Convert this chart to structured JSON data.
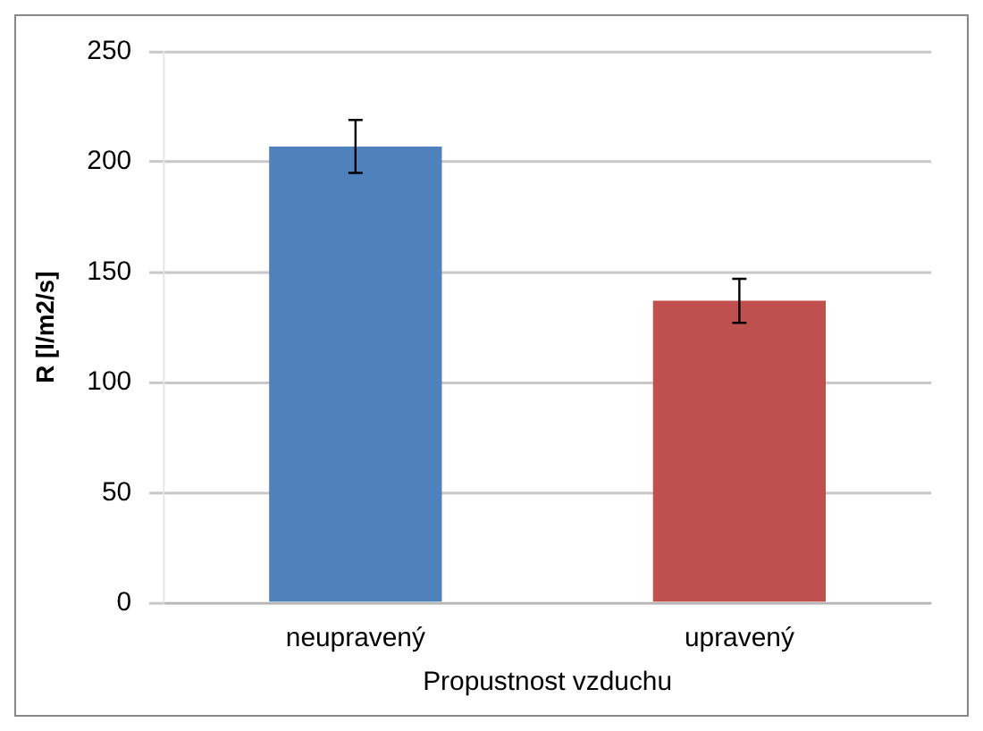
{
  "chart_data": {
    "type": "bar",
    "ylabel": "R [l/m2/s]",
    "xlabel": "Propustnost vzduchu",
    "categories": [
      "neupravený",
      "upravený"
    ],
    "values": [
      207,
      137
    ],
    "colors": [
      "#4f81bd",
      "#c0504d"
    ],
    "errors": [
      12,
      10
    ],
    "ylim": [
      0,
      250
    ],
    "yticks": [
      0,
      50,
      100,
      150,
      200,
      250
    ],
    "grid": "y"
  }
}
